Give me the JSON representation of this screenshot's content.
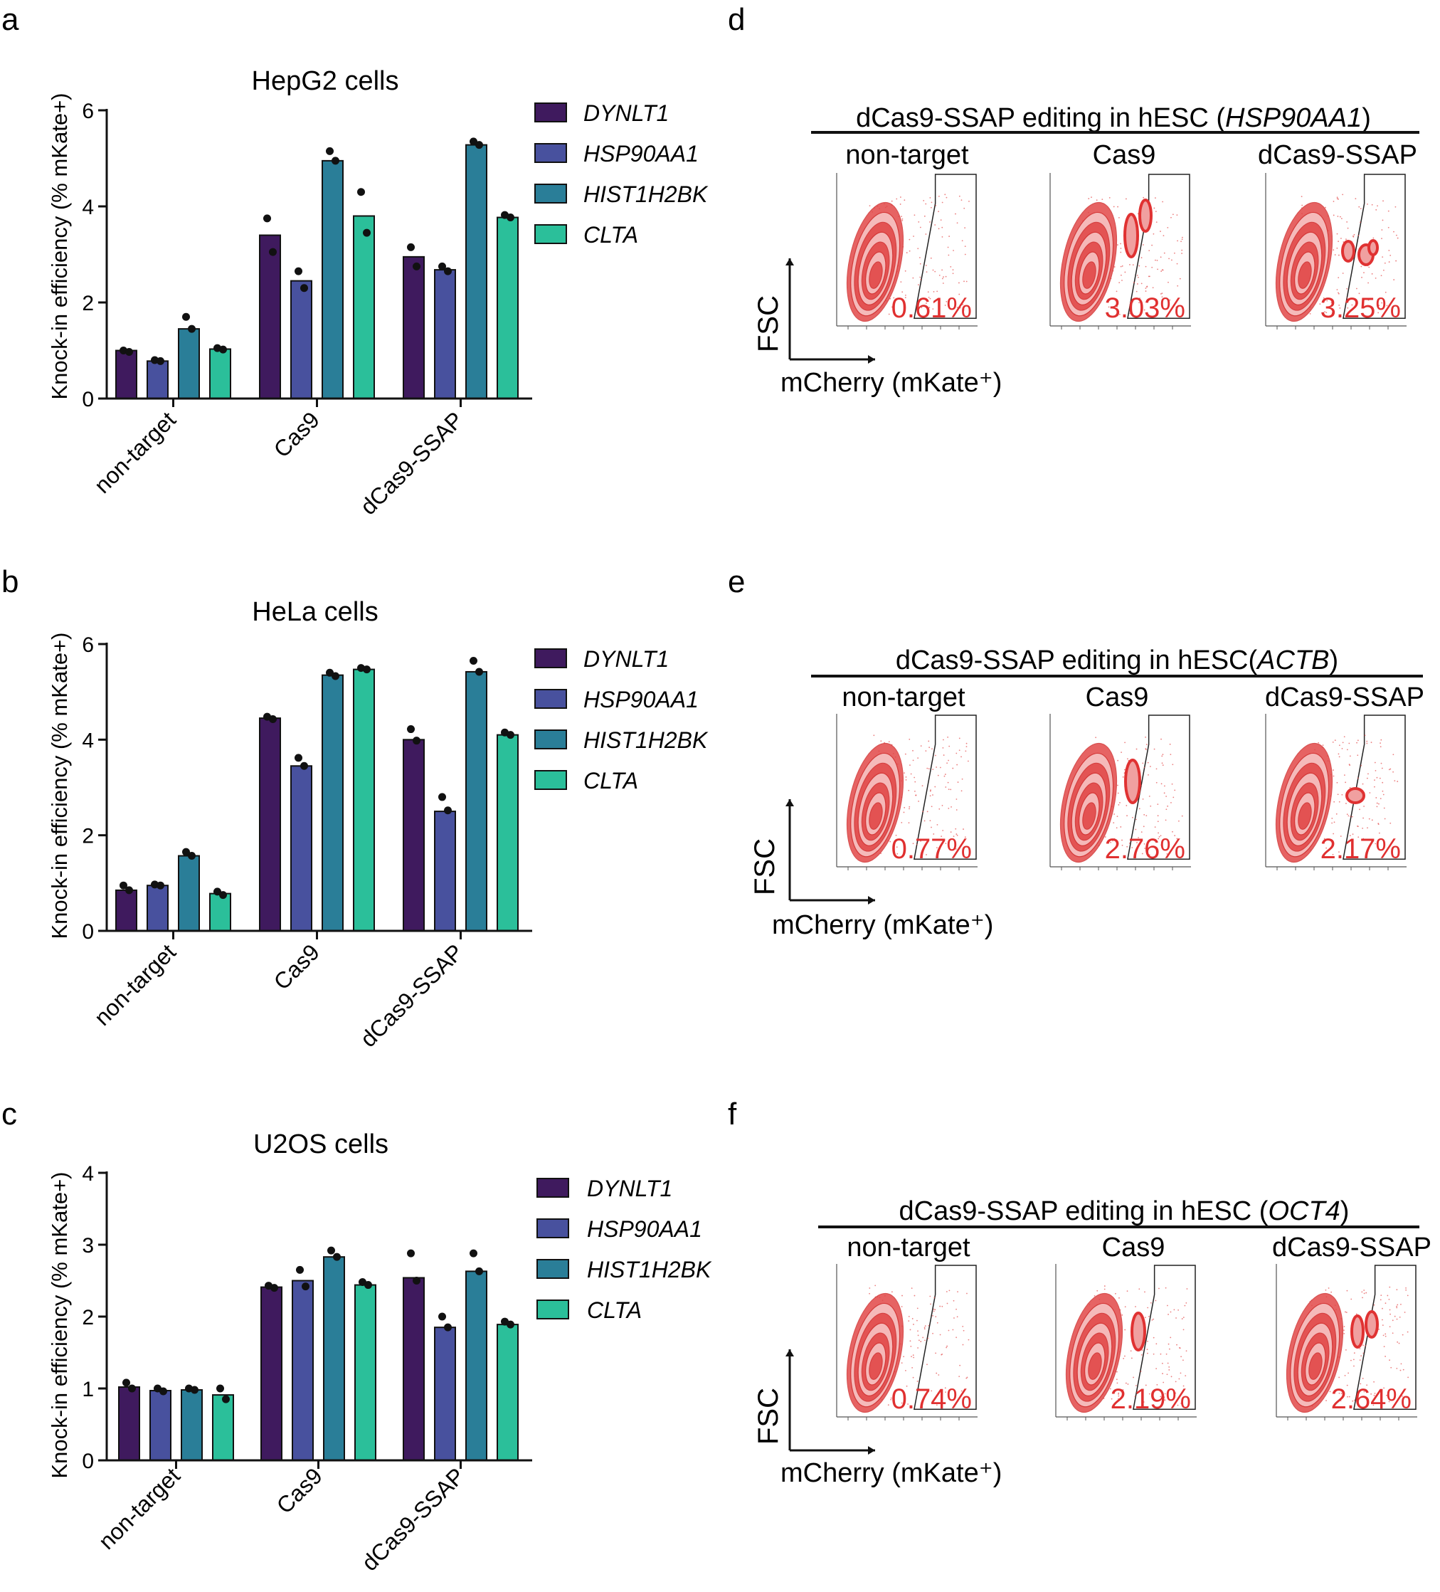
{
  "colors": {
    "DYNLT1": "#3f1a5e",
    "HSP90AA1": "#48519e",
    "HIST1H2BK": "#2a7e98",
    "CLTA": "#2bbf9a",
    "flow": "#e24848"
  },
  "bar_panels": [
    {
      "letter": "a",
      "title": "HepG2 cells",
      "ylabel": "Knock-in efficiency (% mKate+)",
      "ymax": 6,
      "yticks": [
        "0",
        "2",
        "4",
        "6"
      ]
    },
    {
      "letter": "b",
      "title": "HeLa cells",
      "ylabel": "Knock-in efficiency (% mKate+)",
      "ymax": 6,
      "yticks": [
        "0",
        "2",
        "4",
        "6"
      ]
    },
    {
      "letter": "c",
      "title": "U2OS cells",
      "ylabel": "Knock-in efficiency (% mKate+)",
      "ymax": 4,
      "yticks": [
        "0",
        "1",
        "2",
        "3",
        "4"
      ]
    }
  ],
  "legend": [
    "DYNLT1",
    "HSP90AA1",
    "HIST1H2BK",
    "CLTA"
  ],
  "categories": [
    "non-target",
    "Cas9",
    "dCas9-SSAP"
  ],
  "chart_data": [
    {
      "type": "bar",
      "title": "HepG2 cells",
      "ylabel": "Knock-in efficiency (% mKate+)",
      "ylim": [
        0,
        6
      ],
      "categories": [
        "non-target",
        "Cas9",
        "dCas9-SSAP"
      ],
      "series": [
        {
          "name": "DYNLT1",
          "values": [
            1.0,
            3.4,
            2.95
          ],
          "points": [
            [
              1.0,
              0.97
            ],
            [
              3.75,
              3.05
            ],
            [
              3.15,
              2.75
            ]
          ]
        },
        {
          "name": "HSP90AA1",
          "values": [
            0.78,
            2.45,
            2.68
          ],
          "points": [
            [
              0.8,
              0.78
            ],
            [
              2.65,
              2.3
            ],
            [
              2.75,
              2.65
            ]
          ]
        },
        {
          "name": "HIST1H2BK",
          "values": [
            1.45,
            4.95,
            5.28
          ],
          "points": [
            [
              1.7,
              1.45
            ],
            [
              5.15,
              4.95
            ],
            [
              5.35,
              5.28
            ]
          ]
        },
        {
          "name": "CLTA",
          "values": [
            1.03,
            3.8,
            3.77
          ],
          "points": [
            [
              1.05,
              1.02
            ],
            [
              4.3,
              3.45
            ],
            [
              3.82,
              3.77
            ]
          ]
        }
      ]
    },
    {
      "type": "bar",
      "title": "HeLa cells",
      "ylabel": "Knock-in efficiency (% mKate+)",
      "ylim": [
        0,
        6
      ],
      "categories": [
        "non-target",
        "Cas9",
        "dCas9-SSAP"
      ],
      "series": [
        {
          "name": "DYNLT1",
          "values": [
            0.85,
            4.45,
            4.0
          ],
          "points": [
            [
              0.95,
              0.85
            ],
            [
              4.48,
              4.43
            ],
            [
              4.22,
              3.98
            ]
          ]
        },
        {
          "name": "HSP90AA1",
          "values": [
            0.95,
            3.45,
            2.5
          ],
          "points": [
            [
              0.97,
              0.95
            ],
            [
              3.62,
              3.45
            ],
            [
              2.8,
              2.52
            ]
          ]
        },
        {
          "name": "HIST1H2BK",
          "values": [
            1.57,
            5.35,
            5.42
          ],
          "points": [
            [
              1.65,
              1.57
            ],
            [
              5.4,
              5.33
            ],
            [
              5.65,
              5.42
            ]
          ]
        },
        {
          "name": "CLTA",
          "values": [
            0.78,
            5.47,
            4.1
          ],
          "points": [
            [
              0.82,
              0.75
            ],
            [
              5.5,
              5.47
            ],
            [
              4.15,
              4.1
            ]
          ]
        }
      ]
    },
    {
      "type": "bar",
      "title": "U2OS cells",
      "ylabel": "Knock-in efficiency (% mKate+)",
      "ylim": [
        0,
        4
      ],
      "categories": [
        "non-target",
        "Cas9",
        "dCas9-SSAP"
      ],
      "series": [
        {
          "name": "DYNLT1",
          "values": [
            1.02,
            2.41,
            2.54
          ],
          "points": [
            [
              1.08,
              1.0
            ],
            [
              2.43,
              2.4
            ],
            [
              2.88,
              2.5
            ]
          ]
        },
        {
          "name": "HSP90AA1",
          "values": [
            0.97,
            2.5,
            1.85
          ],
          "points": [
            [
              1.0,
              0.96
            ],
            [
              2.65,
              2.42
            ],
            [
              2.0,
              1.85
            ]
          ]
        },
        {
          "name": "HIST1H2BK",
          "values": [
            0.98,
            2.83,
            2.63
          ],
          "points": [
            [
              1.0,
              0.98
            ],
            [
              2.92,
              2.83
            ],
            [
              2.88,
              2.63
            ]
          ]
        },
        {
          "name": "CLTA",
          "values": [
            0.91,
            2.44,
            1.89
          ],
          "points": [
            [
              1.0,
              0.85
            ],
            [
              2.48,
              2.44
            ],
            [
              1.93,
              1.89
            ]
          ]
        }
      ]
    }
  ],
  "flow_panels": [
    {
      "letter": "d",
      "title_prefix": "dCas9-SSAP editing in hESC (",
      "gene": "HSP90AA1",
      "title_suffix": ")",
      "subs": [
        "non-target",
        "Cas9",
        "dCas9-SSAP"
      ],
      "pcts": [
        "0.61%",
        "3.03%",
        "3.25%"
      ],
      "fsc": "FSC",
      "mcherry": "mCherry (mKate⁺)"
    },
    {
      "letter": "e",
      "title_prefix": "dCas9-SSAP editing in hESC(",
      "gene": "ACTB",
      "title_suffix": ")",
      "subs": [
        "non-target",
        "Cas9",
        "dCas9-SSAP"
      ],
      "pcts": [
        "0.77%",
        "2.76%",
        "2.17%"
      ],
      "fsc": "FSC",
      "mcherry": "mCherry (mKate⁺)"
    },
    {
      "letter": "f",
      "title_prefix": "dCas9-SSAP editing in hESC (",
      "gene": "OCT4",
      "title_suffix": ")",
      "subs": [
        "non-target",
        "Cas9",
        "dCas9-SSAP"
      ],
      "pcts": [
        "0.74%",
        "2.19%",
        "2.64%"
      ],
      "fsc": "FSC",
      "mcherry": "mCherry (mKate⁺)"
    }
  ]
}
